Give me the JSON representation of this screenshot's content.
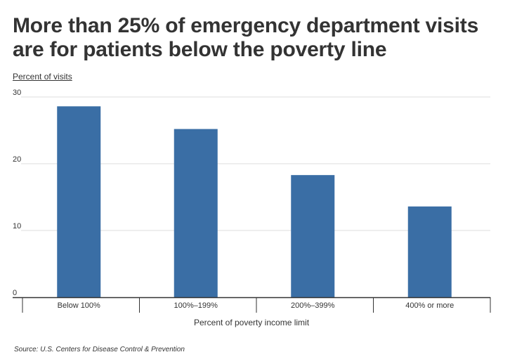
{
  "title": "More than 25% of emergency department visits are for patients below the poverty line",
  "source": "Source: U.S. Centers for Disease Control & Prevention",
  "chart_data": {
    "type": "bar",
    "title": "More than 25% of emergency department visits are for patients below the poverty line",
    "xlabel": "Percent of poverty income limit",
    "ylabel": "Percent of visits",
    "categories": [
      "Below 100%",
      "100%–199%",
      "200%–399%",
      "400% or more"
    ],
    "values": [
      28.6,
      25.2,
      18.3,
      13.6
    ],
    "ylim": [
      0,
      30
    ],
    "yticks": [
      0,
      10,
      20,
      30
    ],
    "grid": true,
    "bar_color": "#3a6ea5",
    "grid_color": "#dddddd",
    "axis_color": "#333333"
  }
}
